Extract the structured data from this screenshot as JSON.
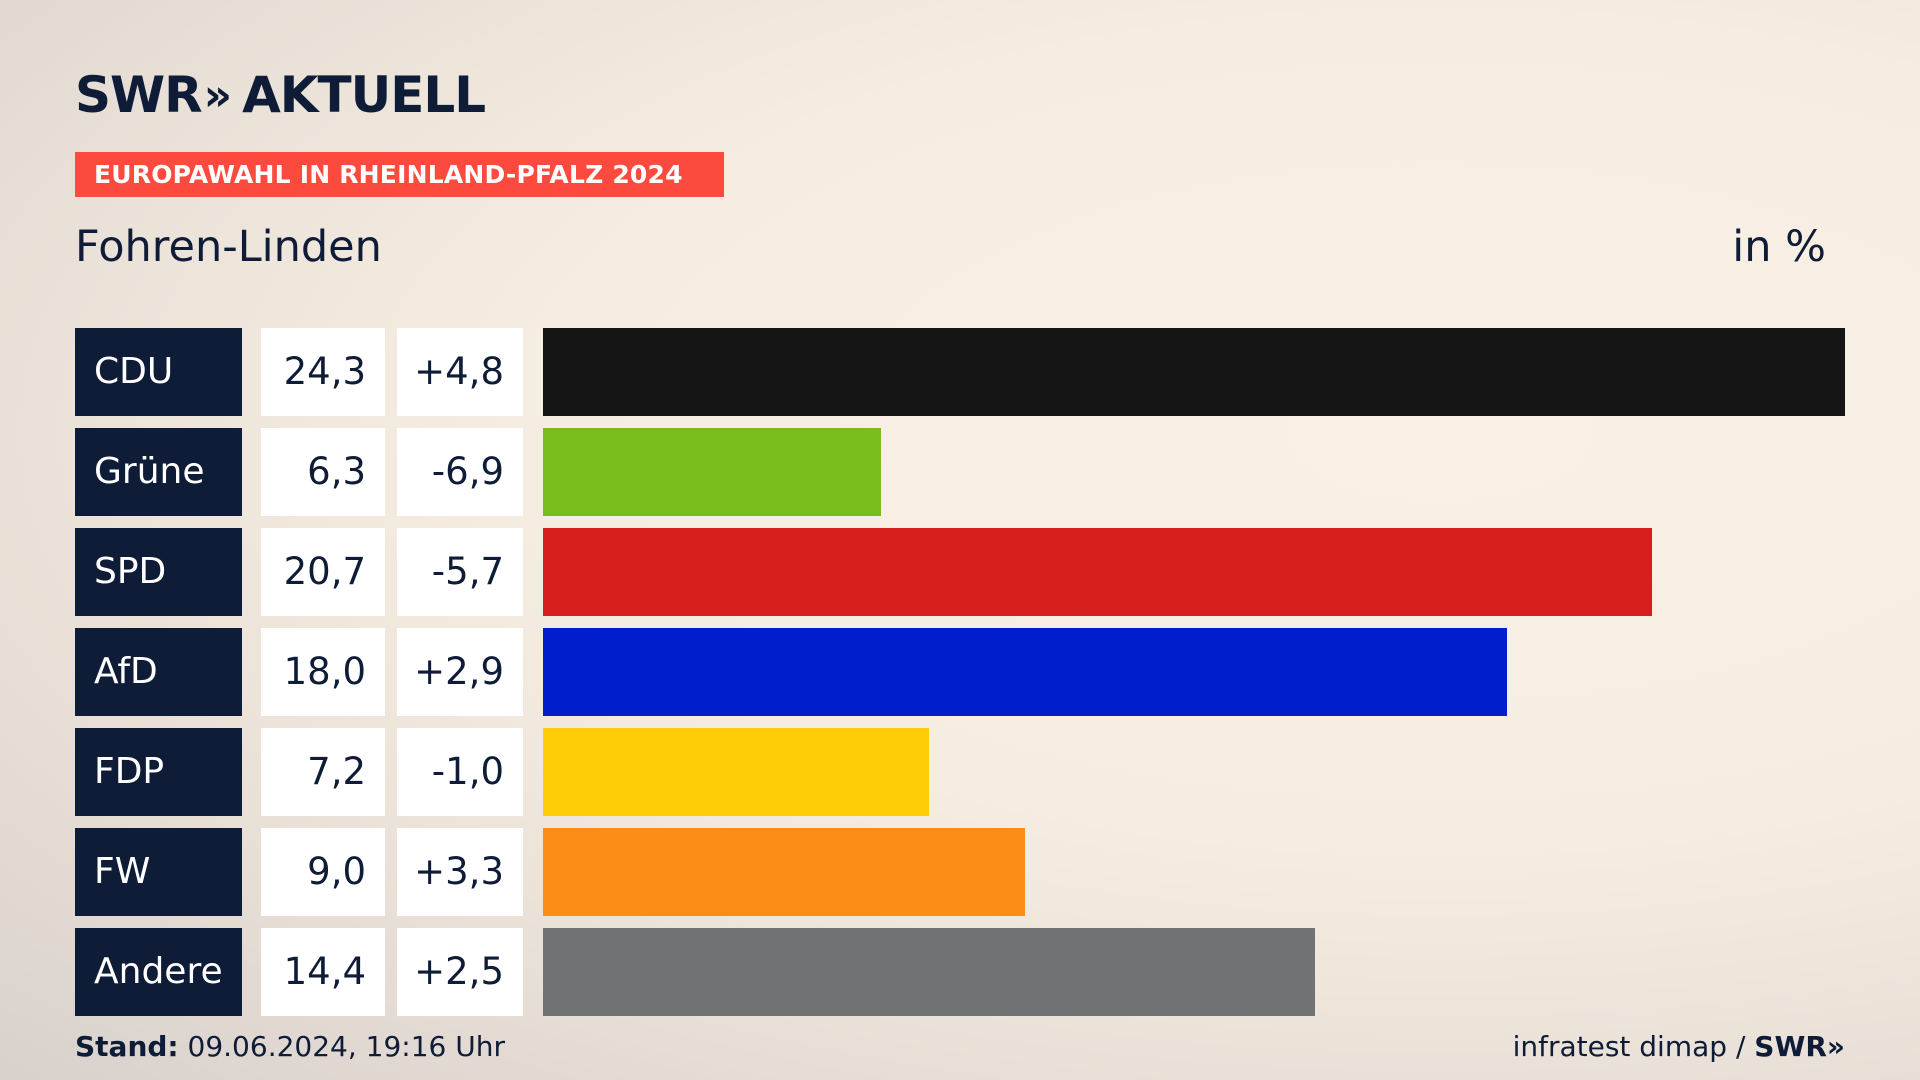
{
  "header": {
    "logo_text": "SWR",
    "logo_chevron": "»",
    "logo_suffix": "AKTUELL",
    "badge": "EUROPAWAHL IN RHEINLAND-PFALZ 2024",
    "place": "Fohren-Linden",
    "unit": "in %"
  },
  "colors": {
    "badge": "#fc4a3f",
    "label_bg": "#0e1c38"
  },
  "chart_data": {
    "type": "bar",
    "orientation": "horizontal",
    "categories": [
      "CDU",
      "Grüne",
      "SPD",
      "AfD",
      "FDP",
      "FW",
      "Andere"
    ],
    "values": [
      24.3,
      6.3,
      20.7,
      18.0,
      7.2,
      9.0,
      14.4
    ],
    "value_labels": [
      "24,3",
      "6,3",
      "20,7",
      "18,0",
      "7,2",
      "9,0",
      "14,4"
    ],
    "diff_labels": [
      "+4,8",
      "-6,9",
      "-5,7",
      "+2,9",
      "-1,0",
      "+3,3",
      "+2,5"
    ],
    "colors": [
      "#141414",
      "#79bd1c",
      "#d61e1e",
      "#001ecc",
      "#ffcc08",
      "#fb8c16",
      "#707274"
    ],
    "xlim": [
      0,
      24.3
    ]
  },
  "footer": {
    "stand_label": "Stand:",
    "stand_value": "09.06.2024, 19:16 Uhr",
    "source": "infratest dimap /",
    "brand": "SWR»"
  }
}
